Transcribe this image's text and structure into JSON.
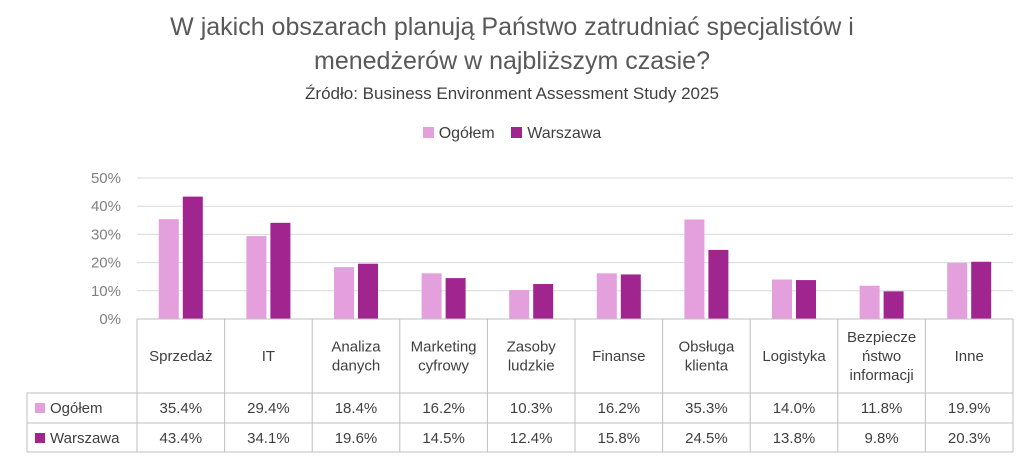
{
  "chart_data": {
    "type": "bar",
    "title_lines": [
      "W jakich obszarach planują Państwo zatrudniać specjalistów i",
      "menedżerów w najbliższym czasie?"
    ],
    "subtitle": "Źródło: Business Environment Assessment Study 2025",
    "categories": [
      [
        "Sprzedaż"
      ],
      [
        "IT"
      ],
      [
        "Analiza",
        "danych"
      ],
      [
        "Marketing",
        "cyfrowy"
      ],
      [
        "Zasoby",
        "ludzkie"
      ],
      [
        "Finanse"
      ],
      [
        "Obsługa",
        "klienta"
      ],
      [
        "Logistyka"
      ],
      [
        "Bezpiecze",
        "ństwo",
        "informacji"
      ],
      [
        "Inne"
      ]
    ],
    "series": [
      {
        "name": "Ogółem",
        "color": "#e3a0dd",
        "values": [
          35.4,
          29.4,
          18.4,
          16.2,
          10.3,
          16.2,
          35.3,
          14.0,
          11.8,
          19.9
        ],
        "labels": [
          "35.4%",
          "29.4%",
          "18.4%",
          "16.2%",
          "10.3%",
          "16.2%",
          "35.3%",
          "14.0%",
          "11.8%",
          "19.9%"
        ]
      },
      {
        "name": "Warszawa",
        "color": "#a0258f",
        "values": [
          43.4,
          34.1,
          19.6,
          14.5,
          12.4,
          15.8,
          24.5,
          13.8,
          9.8,
          20.3
        ],
        "labels": [
          "43.4%",
          "34.1%",
          "19.6%",
          "14.5%",
          "12.4%",
          "15.8%",
          "24.5%",
          "13.8%",
          "9.8%",
          "20.3%"
        ]
      }
    ],
    "y_ticks": [
      "0%",
      "10%",
      "20%",
      "30%",
      "40%",
      "50%"
    ],
    "ylim": [
      0,
      50
    ],
    "grid": true,
    "legend_position": "top-center",
    "data_table": true
  }
}
